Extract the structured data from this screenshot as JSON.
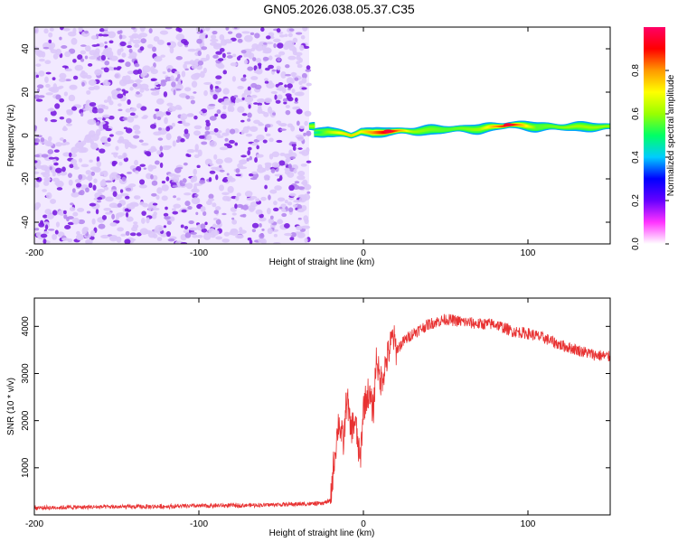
{
  "title": "GN05.2026.038.05.37.C35",
  "chart_data": [
    {
      "type": "heatmap",
      "title": "",
      "xlabel": "Height of straight line (km)",
      "ylabel": "Frequency (Hz)",
      "xlim": [
        -200,
        150
      ],
      "ylim": [
        -50,
        50
      ],
      "xticks": [
        "-200",
        "-100",
        "0",
        "100"
      ],
      "yticks": [
        "-40",
        "-20",
        "0",
        "20",
        "40"
      ],
      "colorbar": {
        "label": "Normalized spectral amplitude",
        "range": [
          0,
          1
        ],
        "ticks": [
          "0.0",
          "0.2",
          "0.4",
          "0.6",
          "0.8"
        ],
        "colors": [
          "#ffffff",
          "#ff33ff",
          "#6600ff",
          "#0000ff",
          "#00ccff",
          "#00ff66",
          "#99ff00",
          "#ffff00",
          "#ff9900",
          "#ff0000",
          "#ff0066"
        ]
      },
      "noise_region": {
        "x_range": [
          -200,
          -33
        ],
        "y_range": [
          -50,
          50
        ],
        "amplitude_range": [
          0.0,
          0.25
        ]
      },
      "signal_band": {
        "x_range": [
          -33,
          150
        ],
        "center_frequency_hz": 2,
        "points": [
          {
            "x": -30,
            "y": 1,
            "amp": 0.45
          },
          {
            "x": -22,
            "y": 2,
            "amp": 0.6
          },
          {
            "x": -15,
            "y": 1,
            "amp": 0.7
          },
          {
            "x": -8,
            "y": 0,
            "amp": 0.75
          },
          {
            "x": -2,
            "y": 2,
            "amp": 0.7
          },
          {
            "x": 5,
            "y": 1,
            "amp": 0.8
          },
          {
            "x": 15,
            "y": 2,
            "amp": 0.95
          },
          {
            "x": 30,
            "y": 2,
            "amp": 0.6
          },
          {
            "x": 50,
            "y": 3,
            "amp": 0.55
          },
          {
            "x": 70,
            "y": 3,
            "amp": 0.6
          },
          {
            "x": 88,
            "y": 5,
            "amp": 0.95
          },
          {
            "x": 105,
            "y": 4,
            "amp": 0.55
          },
          {
            "x": 125,
            "y": 4,
            "amp": 0.6
          },
          {
            "x": 145,
            "y": 4,
            "amp": 0.6
          }
        ]
      }
    },
    {
      "type": "line",
      "title": "",
      "xlabel": "Height of straight line (km)",
      "ylabel": "SNR (10 * v/v)",
      "xlim": [
        -200,
        150
      ],
      "ylim": [
        0,
        4600
      ],
      "xticks": [
        "-200",
        "-100",
        "0",
        "100"
      ],
      "yticks": [
        "1000",
        "2000",
        "3000",
        "4000"
      ],
      "color": "#e83232",
      "series": [
        {
          "x": [
            -200,
            -180,
            -160,
            -140,
            -120,
            -100,
            -80,
            -60,
            -40,
            -25,
            -20,
            -18,
            -15,
            -12,
            -10,
            -8,
            -5,
            -2,
            0,
            3,
            6,
            8,
            10,
            12,
            15,
            18,
            20,
            25,
            30,
            35,
            40,
            45,
            50,
            60,
            70,
            80,
            90,
            100,
            110,
            120,
            130,
            140,
            150
          ],
          "values": [
            150,
            160,
            170,
            170,
            180,
            190,
            200,
            210,
            230,
            240,
            300,
            1100,
            2000,
            1500,
            2600,
            1800,
            2000,
            1100,
            2300,
            2600,
            2200,
            3400,
            2800,
            3000,
            3400,
            3800,
            3500,
            3700,
            3850,
            3950,
            4050,
            4100,
            4150,
            4100,
            4050,
            4050,
            3900,
            3850,
            3750,
            3600,
            3500,
            3400,
            3350
          ]
        }
      ]
    }
  ]
}
